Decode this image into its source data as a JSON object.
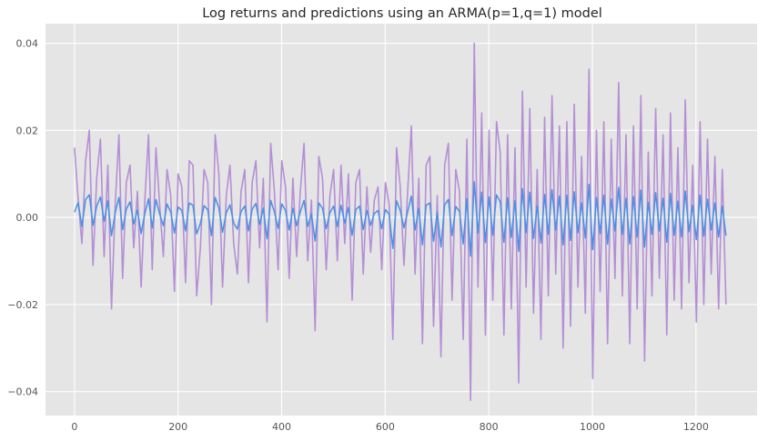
{
  "chart_data": {
    "type": "line",
    "title": "Log returns and predictions using an ARMA(p=1,q=1) model",
    "xlabel": "",
    "ylabel": "",
    "xlim": [
      -56,
      1318
    ],
    "ylim": [
      -0.0455,
      0.0445
    ],
    "x_ticks": [
      0,
      200,
      400,
      600,
      800,
      1000,
      1200
    ],
    "x_tick_labels": [
      "0",
      "200",
      "400",
      "600",
      "800",
      "1000",
      "1200"
    ],
    "y_ticks": [
      0.04,
      0.02,
      0.0,
      -0.02,
      -0.04
    ],
    "y_tick_labels": [
      "0.04",
      "0.02",
      "0.00",
      "−0.02",
      "−0.04"
    ],
    "grid": true,
    "background": "#e5e5e5",
    "n_points": 1259,
    "series": [
      {
        "role": "log-returns",
        "color": "#b48fd6",
        "x_range": [
          0,
          1258
        ],
        "values": [
          0.016,
          0.004,
          -0.006,
          0.013,
          0.02,
          -0.011,
          0.009,
          0.018,
          -0.009,
          0.012,
          -0.021,
          0.003,
          0.019,
          -0.014,
          0.008,
          0.012,
          -0.007,
          0.006,
          -0.016,
          0.004,
          0.019,
          -0.012,
          0.016,
          0.003,
          -0.009,
          0.011,
          0.005,
          -0.017,
          0.01,
          0.007,
          -0.015,
          0.013,
          0.012,
          -0.018,
          -0.007,
          0.011,
          0.008,
          -0.02,
          0.019,
          0.01,
          -0.016,
          0.005,
          0.012,
          -0.006,
          -0.013,
          0.006,
          0.011,
          -0.015,
          0.008,
          0.013,
          -0.007,
          0.009,
          -0.024,
          0.017,
          0.006,
          -0.012,
          0.013,
          0.007,
          -0.014,
          0.009,
          -0.009,
          0.006,
          0.017,
          -0.01,
          0.004,
          -0.026,
          0.014,
          0.009,
          -0.012,
          0.005,
          0.011,
          -0.01,
          0.012,
          -0.006,
          0.01,
          -0.019,
          0.008,
          0.011,
          -0.013,
          0.007,
          -0.008,
          0.004,
          0.007,
          -0.012,
          0.008,
          0.003,
          -0.028,
          0.016,
          0.007,
          -0.011,
          0.006,
          0.021,
          -0.013,
          0.009,
          -0.029,
          0.012,
          0.014,
          -0.025,
          0.005,
          -0.032,
          0.012,
          0.017,
          -0.019,
          0.011,
          0.006,
          -0.028,
          0.018,
          -0.042,
          0.04,
          -0.016,
          0.024,
          -0.027,
          0.02,
          -0.019,
          0.022,
          0.015,
          -0.027,
          0.019,
          -0.021,
          0.016,
          -0.038,
          0.029,
          -0.016,
          0.025,
          -0.022,
          0.011,
          -0.028,
          0.023,
          -0.018,
          0.028,
          -0.013,
          0.021,
          -0.03,
          0.022,
          -0.025,
          0.026,
          -0.016,
          0.014,
          -0.022,
          0.034,
          -0.037,
          0.02,
          -0.017,
          0.022,
          -0.029,
          0.018,
          -0.014,
          0.031,
          -0.018,
          0.019,
          -0.029,
          0.021,
          -0.021,
          0.028,
          -0.033,
          0.015,
          -0.018,
          0.025,
          -0.014,
          0.019,
          -0.027,
          0.024,
          -0.019,
          0.016,
          -0.021,
          0.027,
          -0.015,
          0.012,
          -0.024,
          0.022,
          -0.02,
          0.018,
          -0.013,
          0.014,
          -0.021,
          0.011,
          -0.02
        ]
      },
      {
        "role": "arma-predictions",
        "color": "#4a90e2",
        "x_range": [
          0,
          1258
        ],
        "values": [
          0.0012,
          0.0034,
          -0.0021,
          0.0041,
          0.0052,
          -0.0018,
          0.0026,
          0.0047,
          -0.0009,
          0.0038,
          -0.0042,
          0.0011,
          0.0046,
          -0.0028,
          0.0019,
          0.0036,
          -0.0015,
          0.0017,
          -0.0037,
          0.0009,
          0.0043,
          -0.0024,
          0.0041,
          0.0008,
          -0.0019,
          0.0031,
          0.0012,
          -0.0036,
          0.0024,
          0.0016,
          -0.0031,
          0.0033,
          0.0028,
          -0.0038,
          -0.0014,
          0.0027,
          0.0018,
          -0.0042,
          0.0046,
          0.0022,
          -0.0034,
          0.0011,
          0.0029,
          -0.0013,
          -0.0027,
          0.0014,
          0.0026,
          -0.0031,
          0.0019,
          0.0032,
          -0.0016,
          0.0021,
          -0.0049,
          0.0039,
          0.0013,
          -0.0025,
          0.0031,
          0.0016,
          -0.0029,
          0.0021,
          -0.0019,
          0.0013,
          0.0039,
          -0.0021,
          0.0008,
          -0.0054,
          0.0033,
          0.0021,
          -0.0026,
          0.0011,
          0.0026,
          -0.0021,
          0.0028,
          -0.0013,
          0.0023,
          -0.0041,
          0.0018,
          0.0026,
          -0.0028,
          0.0016,
          -0.0018,
          0.0009,
          0.0016,
          -0.0026,
          0.0018,
          0.0007,
          -0.0071,
          0.0038,
          0.0016,
          -0.0024,
          0.0013,
          0.0049,
          -0.0029,
          0.0021,
          -0.0063,
          0.0028,
          0.0033,
          -0.0055,
          0.0011,
          -0.0068,
          0.0029,
          0.0041,
          -0.0042,
          0.0025,
          0.0014,
          -0.0061,
          0.0043,
          -0.0089,
          0.0082,
          -0.0036,
          0.0058,
          -0.0058,
          0.0047,
          -0.0041,
          0.0052,
          0.0036,
          -0.0057,
          0.0045,
          -0.0046,
          0.0038,
          -0.0078,
          0.0066,
          -0.0035,
          0.0058,
          -0.0048,
          0.0026,
          -0.0059,
          0.0053,
          -0.0039,
          0.0064,
          -0.0029,
          0.0049,
          -0.0063,
          0.0051,
          -0.0053,
          0.0059,
          -0.0035,
          0.0033,
          -0.0047,
          0.0076,
          -0.0074,
          0.0046,
          -0.0037,
          0.0051,
          -0.0061,
          0.0042,
          -0.0031,
          0.0069,
          -0.0039,
          0.0044,
          -0.0061,
          0.0048,
          -0.0045,
          0.0063,
          -0.0068,
          0.0035,
          -0.0039,
          0.0057,
          -0.0031,
          0.0044,
          -0.0057,
          0.0055,
          -0.0041,
          0.0037,
          -0.0045,
          0.0061,
          -0.0033,
          0.0028,
          -0.0051,
          0.0051,
          -0.0043,
          0.0042,
          -0.0029,
          0.0033,
          -0.0045,
          0.0026,
          -0.0042
        ]
      }
    ]
  }
}
